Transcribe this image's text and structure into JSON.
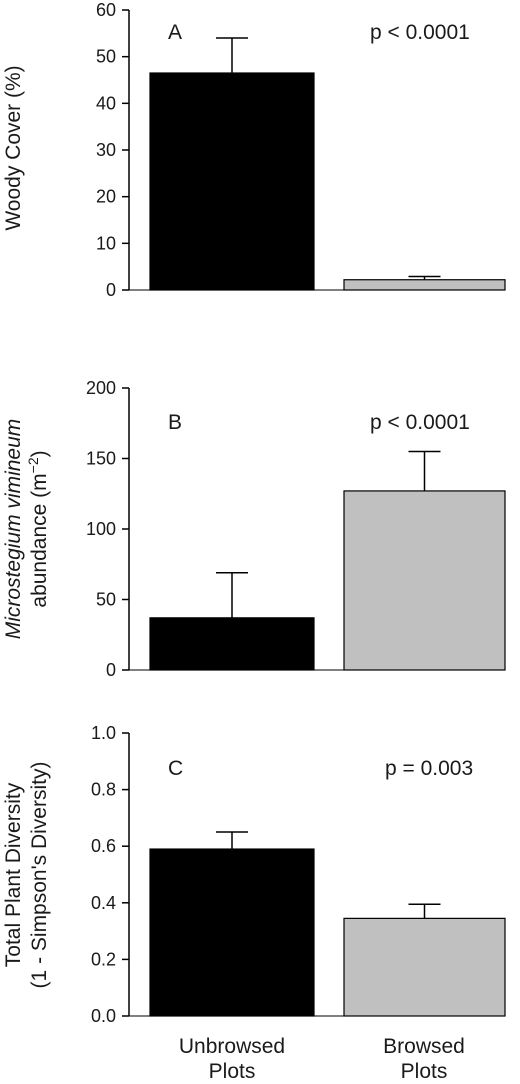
{
  "chart_data": [
    {
      "panel": "A",
      "type": "bar",
      "categories": [
        "Unbrowsed Plots",
        "Browsed Plots"
      ],
      "values": [
        46.5,
        2.2
      ],
      "errors": [
        7.5,
        0.7
      ],
      "colors": [
        "#000000",
        "#c0c0c0"
      ],
      "ylim": [
        0,
        60
      ],
      "yticks": [
        "0",
        "10",
        "20",
        "30",
        "40",
        "50",
        "60"
      ],
      "ylabel": "Woody Cover (%)",
      "annotation": "p < 0.0001"
    },
    {
      "panel": "B",
      "type": "bar",
      "categories": [
        "Unbrowsed Plots",
        "Browsed Plots"
      ],
      "values": [
        37,
        127
      ],
      "errors": [
        32,
        28
      ],
      "colors": [
        "#000000",
        "#c0c0c0"
      ],
      "ylim": [
        0,
        200
      ],
      "yticks": [
        "0",
        "50",
        "100",
        "150",
        "200"
      ],
      "ylabel_line1_italic": "Microstegium vimineum",
      "ylabel_line2": "abundance (m",
      "ylabel_sup": "−2",
      "ylabel_close": ")",
      "annotation": "p < 0.0001"
    },
    {
      "panel": "C",
      "type": "bar",
      "categories": [
        "Unbrowsed Plots",
        "Browsed Plots"
      ],
      "values": [
        0.59,
        0.345
      ],
      "errors": [
        0.06,
        0.05
      ],
      "colors": [
        "#000000",
        "#c0c0c0"
      ],
      "ylim": [
        0,
        1.0
      ],
      "yticks": [
        "0.0",
        "0.2",
        "0.4",
        "0.6",
        "0.8",
        "1.0"
      ],
      "ylabel_line1": "Total Plant Diversity",
      "ylabel_line2": "(1 - Simpson's Diversity)",
      "annotation": "p = 0.003"
    }
  ],
  "x_labels": [
    {
      "line1": "Unbrowsed",
      "line2": "Plots"
    },
    {
      "line1": "Browsed",
      "line2": "Plots"
    }
  ]
}
